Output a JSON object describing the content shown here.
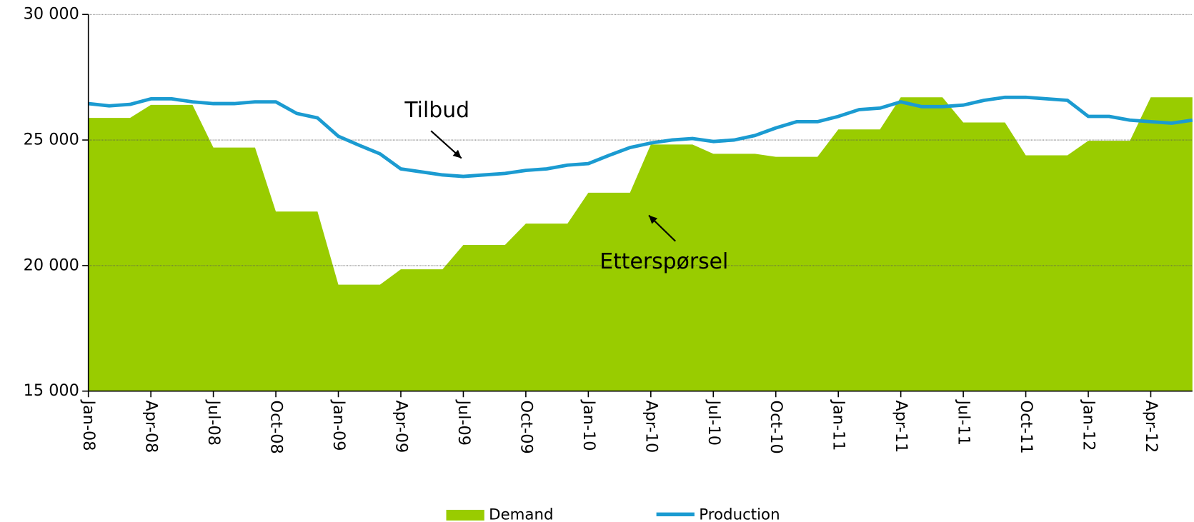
{
  "chart_data": {
    "type": "area_line",
    "categories": [
      "Jan-08",
      null,
      null,
      "Apr-08",
      null,
      null,
      "Jul-08",
      null,
      null,
      "Oct-08",
      null,
      null,
      "Jan-09",
      null,
      null,
      "Apr-09",
      null,
      null,
      "Jul-09",
      null,
      null,
      "Oct-09",
      null,
      null,
      "Jan-10",
      null,
      null,
      "Apr-10",
      null,
      null,
      "Jul-10",
      null,
      null,
      "Oct-10",
      null,
      null,
      "Jan-11",
      null,
      null,
      "Apr-11",
      null,
      null,
      "Jul-11",
      null,
      null,
      "Oct-11",
      null,
      null,
      "Jan-12",
      null,
      null,
      "Apr-12",
      null,
      null
    ],
    "series": [
      {
        "name": "Demand",
        "kind": "area",
        "color": "#99cc00",
        "values": [
          25880,
          25880,
          25880,
          26400,
          26400,
          26400,
          24700,
          24700,
          24700,
          22150,
          22150,
          22150,
          19240,
          19240,
          19240,
          19850,
          19850,
          19850,
          20820,
          20820,
          20820,
          21670,
          21670,
          21670,
          22900,
          22900,
          22900,
          24820,
          24820,
          24820,
          24450,
          24450,
          24450,
          24330,
          24330,
          24330,
          25420,
          25420,
          25420,
          26700,
          26700,
          26700,
          25700,
          25700,
          25700,
          24390,
          24390,
          24390,
          24970,
          24970,
          24970,
          26700,
          26700,
          26700
        ]
      },
      {
        "name": "Production",
        "kind": "line",
        "color": "#1b9bd1",
        "values": [
          26450,
          26360,
          26420,
          26640,
          26640,
          26520,
          26450,
          26450,
          26520,
          26520,
          26060,
          25880,
          25150,
          24790,
          24450,
          23850,
          23730,
          23610,
          23550,
          23610,
          23670,
          23790,
          23850,
          24000,
          24060,
          24390,
          24700,
          24880,
          25000,
          25060,
          24940,
          25000,
          25180,
          25480,
          25730,
          25730,
          25940,
          26210,
          26270,
          26520,
          26330,
          26330,
          26390,
          26580,
          26700,
          26700,
          26640,
          26580,
          25940,
          25940,
          25790,
          25730,
          25670,
          25790
        ]
      }
    ],
    "ylim": [
      15000,
      30000
    ],
    "yticks": [
      {
        "value": 15000,
        "label": "15 000"
      },
      {
        "value": 20000,
        "label": "20 000"
      },
      {
        "value": 25000,
        "label": "25 000"
      },
      {
        "value": 30000,
        "label": "30 000"
      }
    ],
    "grid": true,
    "annotations": [
      "Tilbud",
      "Etterspørsel"
    ],
    "legend": "bottom"
  }
}
